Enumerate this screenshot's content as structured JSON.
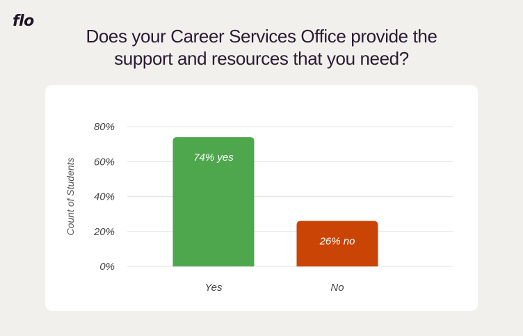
{
  "brand": {
    "logo_text": "flo"
  },
  "title": {
    "line1": "Does your Career Services Office provide the",
    "line2": "support and resources that you need?"
  },
  "chart_data": {
    "type": "bar",
    "title": "Does your Career Services Office provide the support and resources that you need?",
    "xlabel": "",
    "ylabel": "Count of Students",
    "categories": [
      "Yes",
      "No"
    ],
    "values": [
      74,
      26
    ],
    "data_labels": [
      "74% yes",
      "26% no"
    ],
    "colors": [
      "#4ea74d",
      "#c94405"
    ],
    "ylim": [
      0,
      80
    ],
    "y_ticks": [
      0,
      20,
      40,
      60,
      80
    ],
    "y_tick_labels": [
      "0%",
      "20%",
      "40%",
      "60%",
      "80%"
    ],
    "grid": true,
    "grid_color": "#e3e3e3"
  }
}
